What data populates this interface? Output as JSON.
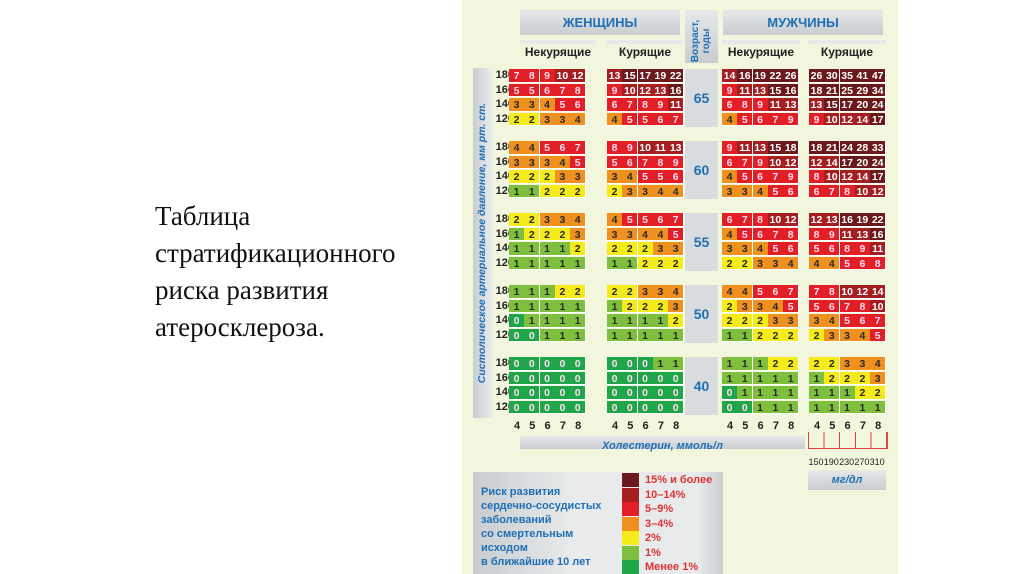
{
  "slide_title": "Таблица\nстратификационного\nриска развития\nатеросклероза.",
  "headers": {
    "women": "ЖЕНЩИНЫ",
    "men": "МУЖЧИНЫ",
    "age": "Возраст, годы",
    "nonsmoking": "Некурящие",
    "smoking": "Курящие",
    "y_axis": "Систолическое артериальное давление, мм рт. ст.",
    "x_axis": "Холестерин, ммоль/л",
    "mg_unit": "мг/дл"
  },
  "chart_data": {
    "type": "heatmap",
    "ylabel": "Систолическое артериальное давление, мм рт. ст.",
    "xlabel": "Холестерин, ммоль/л",
    "groups": [
      "Женщины, некурящие",
      "Женщины, курящие",
      "Мужчины, некурящие",
      "Мужчины, курящие"
    ],
    "cholesterol_mmol": [
      "4",
      "5",
      "6",
      "7",
      "8"
    ],
    "cholesterol_mg": [
      "150",
      "190",
      "230",
      "270",
      "310"
    ],
    "sbp": [
      "180",
      "160",
      "140",
      "120"
    ],
    "ages": [
      {
        "age": "65",
        "values": [
          [
            [
              7,
              8,
              9,
              10,
              12
            ],
            [
              5,
              5,
              6,
              7,
              8
            ],
            [
              3,
              3,
              4,
              5,
              6
            ],
            [
              2,
              2,
              3,
              3,
              4
            ]
          ],
          [
            [
              13,
              15,
              17,
              19,
              22
            ],
            [
              9,
              10,
              12,
              13,
              16
            ],
            [
              6,
              7,
              8,
              9,
              11
            ],
            [
              4,
              5,
              5,
              6,
              7
            ]
          ],
          [
            [
              14,
              16,
              19,
              22,
              26
            ],
            [
              9,
              11,
              13,
              15,
              16
            ],
            [
              6,
              8,
              9,
              11,
              13
            ],
            [
              4,
              5,
              6,
              7,
              9
            ]
          ],
          [
            [
              26,
              30,
              35,
              41,
              47
            ],
            [
              18,
              21,
              25,
              29,
              34
            ],
            [
              13,
              15,
              17,
              20,
              24
            ],
            [
              9,
              10,
              12,
              14,
              17
            ]
          ]
        ]
      },
      {
        "age": "60",
        "values": [
          [
            [
              4,
              4,
              5,
              6,
              7
            ],
            [
              3,
              3,
              3,
              4,
              5
            ],
            [
              2,
              2,
              2,
              3,
              3
            ],
            [
              1,
              1,
              2,
              2,
              2
            ]
          ],
          [
            [
              8,
              9,
              10,
              11,
              13
            ],
            [
              5,
              6,
              7,
              8,
              9
            ],
            [
              3,
              4,
              5,
              5,
              6
            ],
            [
              2,
              3,
              3,
              4,
              4
            ]
          ],
          [
            [
              9,
              11,
              13,
              15,
              18
            ],
            [
              6,
              7,
              9,
              10,
              12
            ],
            [
              4,
              5,
              6,
              7,
              9
            ],
            [
              3,
              3,
              4,
              5,
              6
            ]
          ],
          [
            [
              18,
              21,
              24,
              28,
              33
            ],
            [
              12,
              14,
              17,
              20,
              24
            ],
            [
              8,
              10,
              12,
              14,
              17
            ],
            [
              6,
              7,
              8,
              10,
              12
            ]
          ]
        ]
      },
      {
        "age": "55",
        "values": [
          [
            [
              2,
              2,
              3,
              3,
              4
            ],
            [
              1,
              2,
              2,
              2,
              3
            ],
            [
              1,
              1,
              1,
              1,
              2
            ],
            [
              1,
              1,
              1,
              1,
              1
            ]
          ],
          [
            [
              4,
              5,
              5,
              6,
              7
            ],
            [
              3,
              3,
              4,
              4,
              5
            ],
            [
              2,
              2,
              2,
              3,
              3
            ],
            [
              1,
              1,
              2,
              2,
              2
            ]
          ],
          [
            [
              6,
              7,
              8,
              10,
              12
            ],
            [
              4,
              5,
              6,
              7,
              8
            ],
            [
              3,
              3,
              4,
              5,
              6
            ],
            [
              2,
              2,
              3,
              3,
              4
            ]
          ],
          [
            [
              12,
              13,
              16,
              19,
              22
            ],
            [
              8,
              9,
              11,
              13,
              16
            ],
            [
              5,
              6,
              8,
              9,
              11
            ],
            [
              4,
              4,
              5,
              6,
              8
            ]
          ]
        ]
      },
      {
        "age": "50",
        "values": [
          [
            [
              1,
              1,
              1,
              2,
              2
            ],
            [
              1,
              1,
              1,
              1,
              1
            ],
            [
              0,
              1,
              1,
              1,
              1
            ],
            [
              0,
              0,
              1,
              1,
              1
            ]
          ],
          [
            [
              2,
              2,
              3,
              3,
              4
            ],
            [
              1,
              2,
              2,
              2,
              3
            ],
            [
              1,
              1,
              1,
              1,
              2
            ],
            [
              1,
              1,
              1,
              1,
              1
            ]
          ],
          [
            [
              4,
              4,
              5,
              6,
              7
            ],
            [
              2,
              3,
              3,
              4,
              5
            ],
            [
              2,
              2,
              2,
              3,
              3
            ],
            [
              1,
              1,
              2,
              2,
              2
            ]
          ],
          [
            [
              7,
              8,
              10,
              12,
              14
            ],
            [
              5,
              6,
              7,
              8,
              10
            ],
            [
              3,
              4,
              5,
              6,
              7
            ],
            [
              2,
              3,
              3,
              4,
              5
            ]
          ]
        ]
      },
      {
        "age": "40",
        "values": [
          [
            [
              0,
              0,
              0,
              0,
              0
            ],
            [
              0,
              0,
              0,
              0,
              0
            ],
            [
              0,
              0,
              0,
              0,
              0
            ],
            [
              0,
              0,
              0,
              0,
              0
            ]
          ],
          [
            [
              0,
              0,
              0,
              1,
              1
            ],
            [
              0,
              0,
              0,
              0,
              0
            ],
            [
              0,
              0,
              0,
              0,
              0
            ],
            [
              0,
              0,
              0,
              0,
              0
            ]
          ],
          [
            [
              1,
              1,
              1,
              2,
              2
            ],
            [
              1,
              1,
              1,
              1,
              1
            ],
            [
              0,
              1,
              1,
              1,
              1
            ],
            [
              0,
              0,
              1,
              1,
              1
            ]
          ],
          [
            [
              2,
              2,
              3,
              3,
              4
            ],
            [
              1,
              2,
              2,
              2,
              3
            ],
            [
              1,
              1,
              1,
              2,
              2
            ],
            [
              1,
              1,
              1,
              1,
              1
            ]
          ]
        ]
      }
    ]
  },
  "legend": {
    "title": "Риск развития\nсердечно-сосудистых\nзаболеваний\nсо смертельным\nисходом\nв ближайшие 10 лет",
    "items": [
      {
        "label": "15% и более",
        "color": "#6a1a1d",
        "min": 15
      },
      {
        "label": "10–14%",
        "color": "#a51e22",
        "min": 10
      },
      {
        "label": "5–9%",
        "color": "#e21f26",
        "min": 5
      },
      {
        "label": "3–4%",
        "color": "#f0901f",
        "min": 3
      },
      {
        "label": "2%",
        "color": "#f5ea1a",
        "min": 2
      },
      {
        "label": "1%",
        "color": "#7ebf3e",
        "min": 1
      },
      {
        "label": "Менее 1%",
        "color": "#1fa64a",
        "min": 0
      }
    ]
  }
}
